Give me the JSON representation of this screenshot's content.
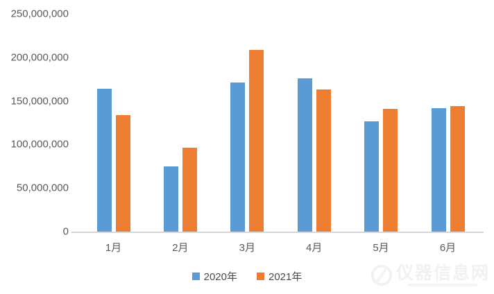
{
  "chart_data": {
    "type": "bar",
    "title": "",
    "xlabel": "",
    "ylabel": "",
    "categories": [
      "1月",
      "2月",
      "3月",
      "4月",
      "5月",
      "6月"
    ],
    "series": [
      {
        "name": "2020年",
        "color": "#5B9BD5",
        "values": [
          164000000,
          75000000,
          171000000,
          176000000,
          127000000,
          142000000
        ]
      },
      {
        "name": "2021年",
        "color": "#ED7D31",
        "values": [
          134000000,
          96000000,
          209000000,
          163000000,
          141000000,
          144000000
        ]
      }
    ],
    "ylim": [
      0,
      250000000
    ],
    "yticks": [
      {
        "value": 0,
        "label": "0"
      },
      {
        "value": 50000000,
        "label": "50,000,000"
      },
      {
        "value": 100000000,
        "label": "100,000,000"
      },
      {
        "value": 150000000,
        "label": "150,000,000"
      },
      {
        "value": 200000000,
        "label": "200,000,000"
      },
      {
        "value": 250000000,
        "label": "250,000,000"
      }
    ],
    "grid": false,
    "legend_position": "bottom"
  },
  "legend": {
    "items": [
      {
        "label": "2020年",
        "color": "#5B9BD5"
      },
      {
        "label": "2021年",
        "color": "#ED7D31"
      }
    ]
  },
  "watermark": {
    "text": "仪器信息网"
  },
  "colors": {
    "background": "#ffffff",
    "axis_line": "#d6d6d6",
    "tick_text": "#595959",
    "series_2020": "#5B9BD5",
    "series_2021": "#ED7D31",
    "watermark": "#f1f1f1"
  }
}
